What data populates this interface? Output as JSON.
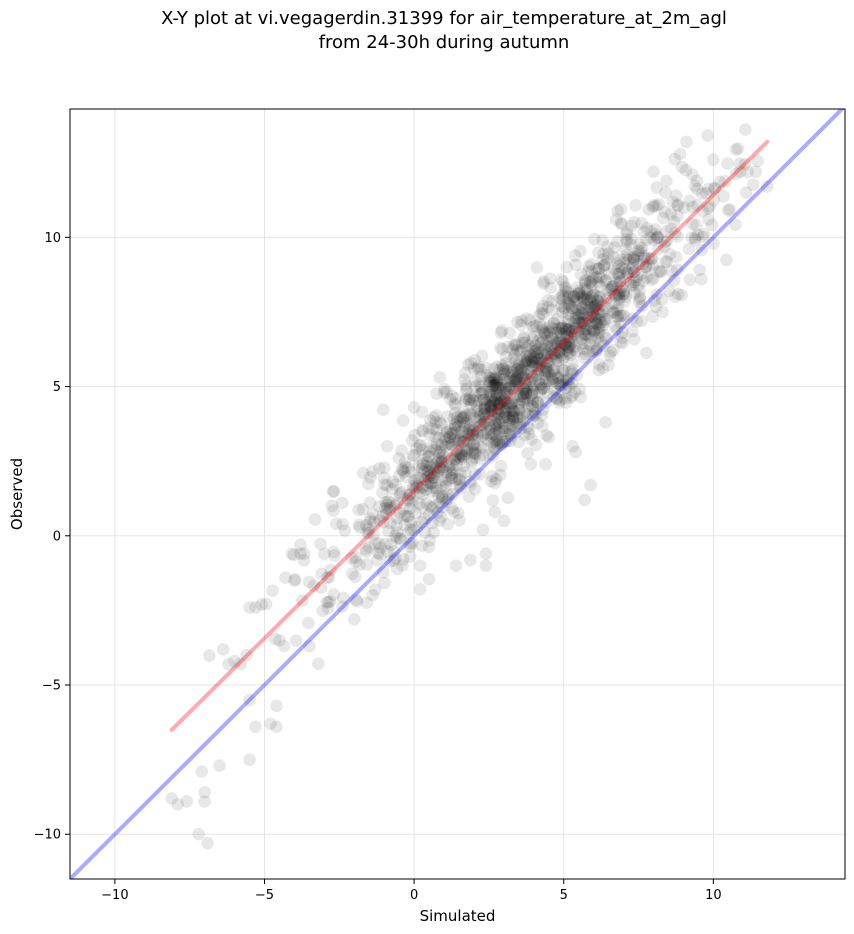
{
  "chart_data": {
    "type": "scatter",
    "title_line1": "X-Y plot at vi.vegagerdin.31399 for air_temperature_at_2m_agl",
    "title_line2": "from 24-30h during autumn",
    "xlabel": "Simulated",
    "ylabel": "Observed",
    "xlim": [
      -11.5,
      14.4
    ],
    "ylim": [
      -11.5,
      14.3
    ],
    "x_ticks": [
      -10,
      -5,
      0,
      5,
      10
    ],
    "y_ticks": [
      -10,
      -5,
      0,
      5,
      10
    ],
    "x_tick_labels": [
      "−10",
      "−5",
      "0",
      "5",
      "10"
    ],
    "y_tick_labels": [
      "−10",
      "−5",
      "0",
      "5",
      "10"
    ],
    "grid": true,
    "point_color": "#000000",
    "point_opacity": 0.09,
    "point_count": 1500,
    "points_sample": [
      [
        -8.1,
        -8.8
      ],
      [
        -7.9,
        -9.0
      ],
      [
        -7.6,
        -8.9
      ],
      [
        -7.2,
        -10.0
      ],
      [
        -6.9,
        -10.3
      ],
      [
        -7.1,
        -7.9
      ],
      [
        -7.0,
        -8.6
      ],
      [
        -7.0,
        -8.9
      ],
      [
        -6.5,
        -7.7
      ],
      [
        -6.2,
        -4.3
      ],
      [
        -6.0,
        -4.2
      ],
      [
        -5.8,
        -4.3
      ],
      [
        -5.6,
        -4.0
      ],
      [
        -5.5,
        -2.4
      ],
      [
        -5.3,
        -2.4
      ],
      [
        -5.1,
        -2.3
      ],
      [
        -5.5,
        -5.5
      ],
      [
        -5.5,
        -7.5
      ],
      [
        -5.3,
        -6.4
      ],
      [
        -4.8,
        -6.3
      ],
      [
        -4.6,
        -6.4
      ],
      [
        -4.6,
        -5.7
      ],
      [
        -4.5,
        -3.5
      ],
      [
        -4.3,
        -1.4
      ],
      [
        -4.0,
        -1.5
      ],
      [
        -3.8,
        -0.6
      ],
      [
        -3.5,
        -3.7
      ],
      [
        -3.8,
        -0.3
      ],
      [
        -2.9,
        -1.4
      ],
      [
        -2.7,
        1.5
      ],
      [
        -2.4,
        1.1
      ],
      [
        -2.0,
        -2.8
      ],
      [
        -1.9,
        -2.2
      ],
      [
        -1.7,
        2.1
      ],
      [
        -1.3,
        -1.8
      ],
      [
        -0.9,
        3.0
      ],
      [
        -0.4,
        2.2
      ],
      [
        0.0,
        4.3
      ],
      [
        0.2,
        -1.0
      ],
      [
        0.3,
        3.5
      ],
      [
        1.0,
        4.8
      ],
      [
        1.2,
        2.6
      ],
      [
        1.4,
        -1.0
      ],
      [
        1.8,
        3.4
      ],
      [
        2.0,
        5.6
      ],
      [
        2.3,
        0.2
      ],
      [
        2.4,
        -0.6
      ],
      [
        2.4,
        -1.0
      ],
      [
        2.7,
        0.8
      ],
      [
        2.9,
        6.8
      ],
      [
        3.0,
        0.5
      ],
      [
        3.3,
        5.2
      ],
      [
        3.6,
        7.2
      ],
      [
        3.9,
        2.4
      ],
      [
        4.1,
        5.8
      ],
      [
        4.3,
        7.7
      ],
      [
        4.4,
        2.4
      ],
      [
        4.5,
        3.3
      ],
      [
        4.8,
        6.5
      ],
      [
        5.1,
        9.0
      ],
      [
        5.3,
        3.0
      ],
      [
        5.4,
        2.8
      ],
      [
        5.7,
        1.2
      ],
      [
        5.9,
        1.7
      ],
      [
        6.0,
        7.5
      ],
      [
        6.3,
        9.9
      ],
      [
        6.4,
        3.8
      ],
      [
        7.1,
        10.1
      ],
      [
        7.6,
        7.2
      ],
      [
        8.0,
        12.2
      ],
      [
        8.3,
        7.5
      ],
      [
        8.8,
        11.1
      ],
      [
        9.1,
        13.2
      ],
      [
        9.3,
        12.1
      ],
      [
        9.6,
        8.6
      ],
      [
        10.0,
        12.6
      ],
      [
        10.5,
        10.9
      ],
      [
        10.9,
        12.2
      ],
      [
        11.1,
        11.5
      ],
      [
        11.8,
        11.7
      ]
    ],
    "series": [
      {
        "name": "",
        "type": "identity",
        "color": "#0000ff",
        "x": [
          -11.5,
          14.4
        ],
        "y": [
          -11.5,
          14.4
        ]
      },
      {
        "name": "",
        "type": "fit",
        "color": "#ff0000",
        "x": [
          -8.1,
          11.8
        ],
        "y": [
          -6.5,
          13.2
        ]
      }
    ]
  }
}
